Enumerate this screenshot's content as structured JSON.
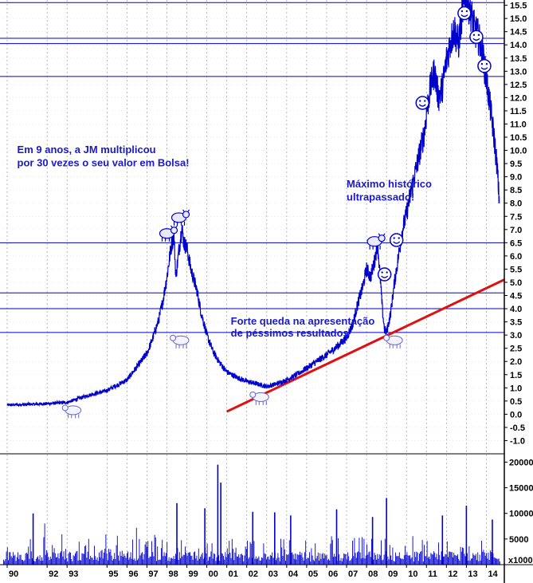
{
  "chart_data": {
    "type": "line",
    "title": "",
    "colors": {
      "price": "#0000cc",
      "volume": "#0000cc",
      "trend": "#dd1111",
      "hline": "#0000cc",
      "annotation": "#1a1acc"
    },
    "x_ticks": [
      "90",
      "92",
      "93",
      "95",
      "96",
      "97",
      "98",
      "99",
      "00",
      "01",
      "02",
      "03",
      "04",
      "05",
      "06",
      "07",
      "08",
      "09",
      "10",
      "11",
      "12",
      "13",
      "14"
    ],
    "x_tick_years": [
      1990,
      1992,
      1993,
      1995,
      1996,
      1997,
      1998,
      1999,
      2000,
      2001,
      2002,
      2003,
      2004,
      2005,
      2006,
      2007,
      2008,
      2009,
      2010,
      2011,
      2012,
      2013,
      2014
    ],
    "xlim": [
      1989.8,
      2014.9
    ],
    "price_axis": {
      "ylim": [
        -1.5,
        15.7
      ],
      "ticks": [
        "15.5",
        "15.0",
        "14.5",
        "14.0",
        "13.5",
        "13.0",
        "12.5",
        "12.0",
        "11.5",
        "11.0",
        "10.5",
        "10.0",
        "9.5",
        "9.0",
        "8.5",
        "8.0",
        "7.5",
        "7.0",
        "6.5",
        "6.0",
        "5.5",
        "5.0",
        "4.5",
        "4.0",
        "3.5",
        "3.0",
        "2.5",
        "2.0",
        "1.5",
        "1.0",
        "0.5",
        "0.0",
        "-0.5",
        "-1.0"
      ]
    },
    "volume_axis": {
      "ylim": [
        0,
        21000
      ],
      "ticks": [
        "20000",
        "15000",
        "10000",
        "5000"
      ],
      "unit_label": "x1000"
    },
    "price_series": {
      "name": "",
      "points": [
        [
          1990.0,
          0.35
        ],
        [
          1991.0,
          0.37
        ],
        [
          1992.0,
          0.4
        ],
        [
          1993.0,
          0.45
        ],
        [
          1994.0,
          0.7
        ],
        [
          1995.0,
          0.9
        ],
        [
          1996.0,
          1.3
        ],
        [
          1996.5,
          1.8
        ],
        [
          1997.0,
          2.3
        ],
        [
          1997.3,
          2.9
        ],
        [
          1997.6,
          3.6
        ],
        [
          1997.8,
          4.3
        ],
        [
          1998.0,
          5.2
        ],
        [
          1998.2,
          6.3
        ],
        [
          1998.35,
          6.8
        ],
        [
          1998.45,
          5.2
        ],
        [
          1998.6,
          6.2
        ],
        [
          1998.75,
          7.1
        ],
        [
          1998.85,
          6.5
        ],
        [
          1999.0,
          6.3
        ],
        [
          1999.2,
          5.5
        ],
        [
          1999.5,
          4.7
        ],
        [
          1999.7,
          3.9
        ],
        [
          2000.0,
          3.0
        ],
        [
          2000.3,
          2.4
        ],
        [
          2000.6,
          2.0
        ],
        [
          2001.0,
          1.6
        ],
        [
          2001.5,
          1.4
        ],
        [
          2002.0,
          1.25
        ],
        [
          2002.5,
          1.15
        ],
        [
          2003.0,
          1.05
        ],
        [
          2003.5,
          1.15
        ],
        [
          2004.0,
          1.3
        ],
        [
          2004.5,
          1.5
        ],
        [
          2005.0,
          1.75
        ],
        [
          2005.5,
          2.0
        ],
        [
          2006.0,
          2.25
        ],
        [
          2006.5,
          2.55
        ],
        [
          2007.0,
          2.9
        ],
        [
          2007.3,
          3.4
        ],
        [
          2007.6,
          4.3
        ],
        [
          2007.8,
          4.8
        ],
        [
          2008.0,
          5.5
        ],
        [
          2008.2,
          5.2
        ],
        [
          2008.4,
          5.8
        ],
        [
          2008.55,
          6.5
        ],
        [
          2008.7,
          5.0
        ],
        [
          2008.8,
          3.9
        ],
        [
          2008.9,
          3.2
        ],
        [
          2009.0,
          3.1
        ],
        [
          2009.2,
          3.8
        ],
        [
          2009.4,
          5.0
        ],
        [
          2009.6,
          6.0
        ],
        [
          2009.8,
          7.0
        ],
        [
          2010.0,
          7.6
        ],
        [
          2010.3,
          8.7
        ],
        [
          2010.6,
          9.7
        ],
        [
          2010.9,
          10.7
        ],
        [
          2011.0,
          11.4
        ],
        [
          2011.2,
          12.4
        ],
        [
          2011.4,
          13.0
        ],
        [
          2011.6,
          12.0
        ],
        [
          2011.8,
          12.4
        ],
        [
          2012.0,
          13.4
        ],
        [
          2012.2,
          14.1
        ],
        [
          2012.4,
          14.6
        ],
        [
          2012.6,
          14.0
        ],
        [
          2012.8,
          15.3
        ],
        [
          2013.0,
          15.8
        ],
        [
          2013.2,
          15.3
        ],
        [
          2013.4,
          14.6
        ],
        [
          2013.6,
          14.3
        ],
        [
          2013.8,
          13.7
        ],
        [
          2014.0,
          12.7
        ],
        [
          2014.2,
          11.6
        ],
        [
          2014.4,
          10.4
        ],
        [
          2014.55,
          9.3
        ],
        [
          2014.65,
          8.0
        ]
      ]
    },
    "horizontal_levels": [
      15.6,
      14.25,
      14.05,
      12.8,
      6.5,
      4.6,
      4.0,
      3.1
    ],
    "trend_line": {
      "from": [
        2001.0,
        0.1
      ],
      "to": [
        2014.9,
        5.1
      ]
    },
    "volume_spikes": [
      [
        2000.55,
        19500
      ],
      [
        2000.7,
        16000
      ],
      [
        1998.5,
        12000
      ],
      [
        2009.0,
        13000
      ],
      [
        2013.0,
        11500
      ],
      [
        1999.9,
        11000
      ],
      [
        2006.5,
        10800
      ],
      [
        2002.3,
        10300
      ],
      [
        2004.2,
        9600
      ],
      [
        2011.8,
        9600
      ],
      [
        2014.3,
        8800
      ],
      [
        1991.3,
        10000
      ],
      [
        2003.4,
        10200
      ],
      [
        2008.3,
        9300
      ]
    ],
    "annotations": [
      {
        "text": "Em 9 anos, a JM multiplicou",
        "x": 1990.5,
        "y": 9.9
      },
      {
        "text": "por 30 vezes o seu valor em Bolsa!",
        "x": 1990.5,
        "y": 9.4
      },
      {
        "text": "Máximo histórico",
        "x": 2007.0,
        "y": 8.6
      },
      {
        "text": "ultrapassado!",
        "x": 2007.0,
        "y": 8.1
      },
      {
        "text": "Forte queda na apresentação",
        "x": 2001.2,
        "y": 3.4
      },
      {
        "text": "de péssimos resultados",
        "x": 2001.2,
        "y": 2.95
      }
    ],
    "bull_icons": [
      [
        1998.6,
        7.45
      ],
      [
        1998.0,
        6.85
      ],
      [
        2008.4,
        6.55
      ]
    ],
    "bear_icons": [
      [
        1993.3,
        0.15
      ],
      [
        1998.7,
        2.8
      ],
      [
        2002.7,
        0.65
      ],
      [
        2009.4,
        2.8
      ]
    ],
    "smiley_icons": [
      [
        2010.8,
        11.8
      ],
      [
        2009.5,
        6.6
      ],
      [
        2008.9,
        5.3
      ],
      [
        2012.9,
        15.2
      ],
      [
        2013.5,
        14.3
      ],
      [
        2013.9,
        13.2
      ]
    ]
  }
}
